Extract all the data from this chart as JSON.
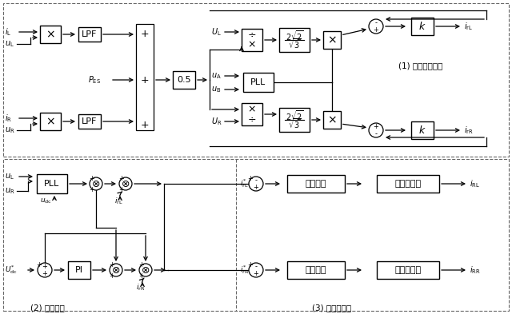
{
  "bg_color": "#ffffff",
  "lc": "#000000",
  "figsize": [
    6.4,
    3.93
  ],
  "dpi": 100,
  "label1": "(1) 补偿电流计算",
  "label2": "(2) 电压外环",
  "label3": "(3) 脉冲波产生"
}
